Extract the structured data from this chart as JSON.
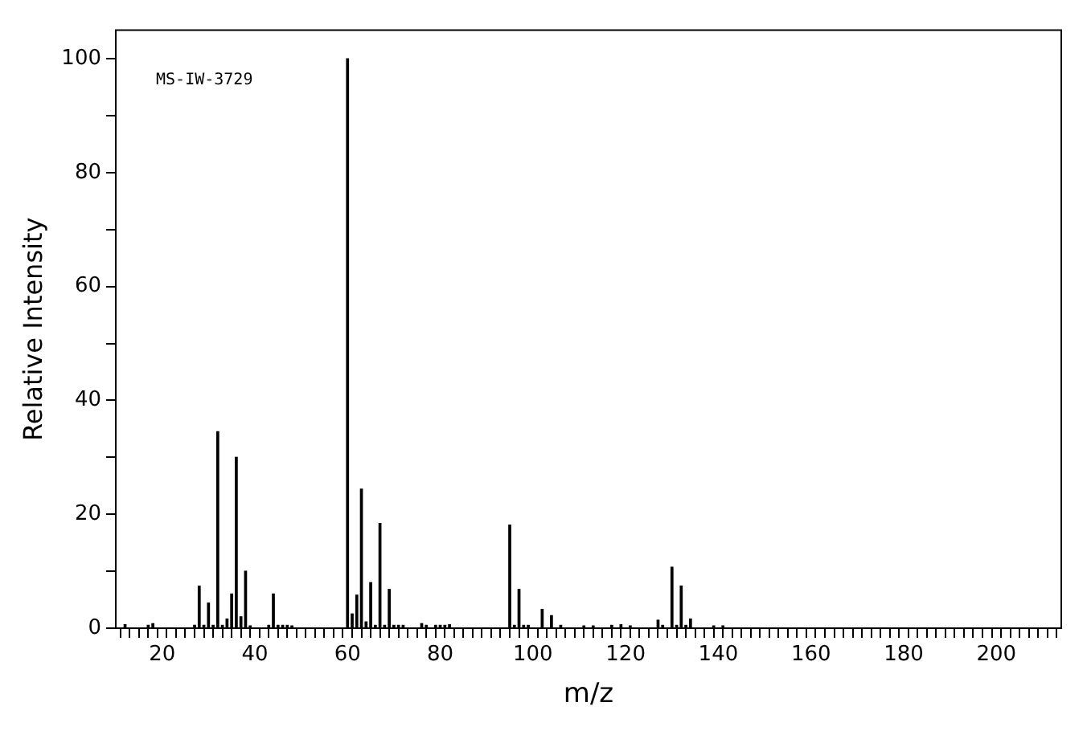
{
  "chart_data": {
    "type": "bar",
    "xlabel": "m/z",
    "ylabel": "Relative Intensity",
    "annotations": [
      "MS-IW-3729"
    ],
    "x": [
      12,
      17,
      18,
      27,
      28,
      29,
      30,
      31,
      32,
      33,
      34,
      35,
      36,
      37,
      38,
      39,
      43,
      44,
      45,
      46,
      47,
      48,
      60,
      61,
      62,
      63,
      64,
      65,
      66,
      67,
      68,
      69,
      70,
      71,
      72,
      76,
      77,
      79,
      80,
      81,
      82,
      95,
      96,
      97,
      98,
      99,
      102,
      104,
      106,
      111,
      113,
      117,
      119,
      121,
      127,
      128,
      130,
      131,
      132,
      133,
      134,
      139,
      141
    ],
    "series": [
      {
        "color": "#000000",
        "values": [
          0.6,
          0.5,
          0.8,
          0.5,
          7.4,
          0.5,
          4.4,
          0.5,
          34.5,
          0.5,
          1.6,
          6,
          30,
          2,
          10,
          0.4,
          0.5,
          6,
          0.5,
          0.5,
          0.5,
          0.4,
          100,
          2.5,
          5.8,
          24.4,
          1.1,
          8,
          0.5,
          18.4,
          0.5,
          6.8,
          0.5,
          0.5,
          0.5,
          0.8,
          0.5,
          0.5,
          0.5,
          0.5,
          0.6,
          18.1,
          0.5,
          6.8,
          0.5,
          0.5,
          3.3,
          2.2,
          0.5,
          0.4,
          0.4,
          0.5,
          0.6,
          0.4,
          1.4,
          0.5,
          10.7,
          0.5,
          7.4,
          0.5,
          1.6,
          0.4,
          0.4
        ]
      }
    ],
    "xlim": [
      10,
      214
    ],
    "ylim": [
      0,
      105
    ],
    "xticks": [
      {
        "value": 10,
        "label": null
      },
      {
        "value": 12,
        "label": null
      },
      {
        "value": 14,
        "label": null
      },
      {
        "value": 16,
        "label": null
      },
      {
        "value": 18,
        "label": null
      },
      20,
      {
        "value": 22,
        "label": null
      },
      {
        "value": 24,
        "label": null
      },
      {
        "value": 26,
        "label": null
      },
      {
        "value": 28,
        "label": null
      },
      {
        "value": 30,
        "label": null
      },
      {
        "value": 32,
        "label": null
      },
      {
        "value": 34,
        "label": null
      },
      {
        "value": 36,
        "label": null
      },
      {
        "value": 38,
        "label": null
      },
      40,
      {
        "value": 42,
        "label": null
      },
      {
        "value": 44,
        "label": null
      },
      {
        "value": 46,
        "label": null
      },
      {
        "value": 48,
        "label": null
      },
      {
        "value": 50,
        "label": null
      },
      {
        "value": 52,
        "label": null
      },
      {
        "value": 54,
        "label": null
      },
      {
        "value": 56,
        "label": null
      },
      {
        "value": 58,
        "label": null
      },
      60,
      {
        "value": 62,
        "label": null
      },
      {
        "value": 64,
        "label": null
      },
      {
        "value": 66,
        "label": null
      },
      {
        "value": 68,
        "label": null
      },
      {
        "value": 70,
        "label": null
      },
      {
        "value": 72,
        "label": null
      },
      {
        "value": 74,
        "label": null
      },
      {
        "value": 76,
        "label": null
      },
      {
        "value": 78,
        "label": null
      },
      80,
      {
        "value": 82,
        "label": null
      },
      {
        "value": 84,
        "label": null
      },
      {
        "value": 86,
        "label": null
      },
      {
        "value": 88,
        "label": null
      },
      {
        "value": 90,
        "label": null
      },
      {
        "value": 92,
        "label": null
      },
      {
        "value": 94,
        "label": null
      },
      {
        "value": 96,
        "label": null
      },
      {
        "value": 98,
        "label": null
      },
      100,
      {
        "value": 102,
        "label": null
      },
      {
        "value": 104,
        "label": null
      },
      {
        "value": 106,
        "label": null
      },
      {
        "value": 108,
        "label": null
      },
      {
        "value": 110,
        "label": null
      },
      {
        "value": 112,
        "label": null
      },
      {
        "value": 114,
        "label": null
      },
      {
        "value": 116,
        "label": null
      },
      {
        "value": 118,
        "label": null
      },
      120,
      {
        "value": 122,
        "label": null
      },
      {
        "value": 124,
        "label": null
      },
      {
        "value": 126,
        "label": null
      },
      {
        "value": 128,
        "label": null
      },
      {
        "value": 130,
        "label": null
      },
      {
        "value": 132,
        "label": null
      },
      {
        "value": 134,
        "label": null
      },
      {
        "value": 136,
        "label": null
      },
      {
        "value": 138,
        "label": null
      },
      140,
      {
        "value": 142,
        "label": null
      },
      {
        "value": 144,
        "label": null
      },
      {
        "value": 146,
        "label": null
      },
      {
        "value": 148,
        "label": null
      },
      {
        "value": 150,
        "label": null
      },
      {
        "value": 152,
        "label": null
      },
      {
        "value": 154,
        "label": null
      },
      {
        "value": 156,
        "label": null
      },
      {
        "value": 158,
        "label": null
      },
      160,
      {
        "value": 162,
        "label": null
      },
      {
        "value": 164,
        "label": null
      },
      {
        "value": 166,
        "label": null
      },
      {
        "value": 168,
        "label": null
      },
      {
        "value": 170,
        "label": null
      },
      {
        "value": 172,
        "label": null
      },
      {
        "value": 174,
        "label": null
      },
      {
        "value": 176,
        "label": null
      },
      {
        "value": 178,
        "label": null
      },
      180,
      {
        "value": 182,
        "label": null
      },
      {
        "value": 184,
        "label": null
      },
      {
        "value": 186,
        "label": null
      },
      {
        "value": 188,
        "label": null
      },
      {
        "value": 190,
        "label": null
      },
      {
        "value": 192,
        "label": null
      },
      {
        "value": 194,
        "label": null
      },
      {
        "value": 196,
        "label": null
      },
      {
        "value": 198,
        "label": null
      },
      200,
      {
        "value": 202,
        "label": null
      },
      {
        "value": 204,
        "label": null
      },
      {
        "value": 206,
        "label": null
      },
      {
        "value": 208,
        "label": null
      },
      {
        "value": 210,
        "label": null
      },
      {
        "value": 212,
        "label": null
      }
    ],
    "yticks": [
      0,
      {
        "value": 10,
        "label": null
      },
      20,
      {
        "value": 30,
        "label": null
      },
      40,
      {
        "value": 50,
        "label": null
      },
      60,
      {
        "value": 70,
        "label": null
      },
      80,
      {
        "value": 90,
        "label": null
      },
      100
    ],
    "grid": false,
    "legend": false
  }
}
